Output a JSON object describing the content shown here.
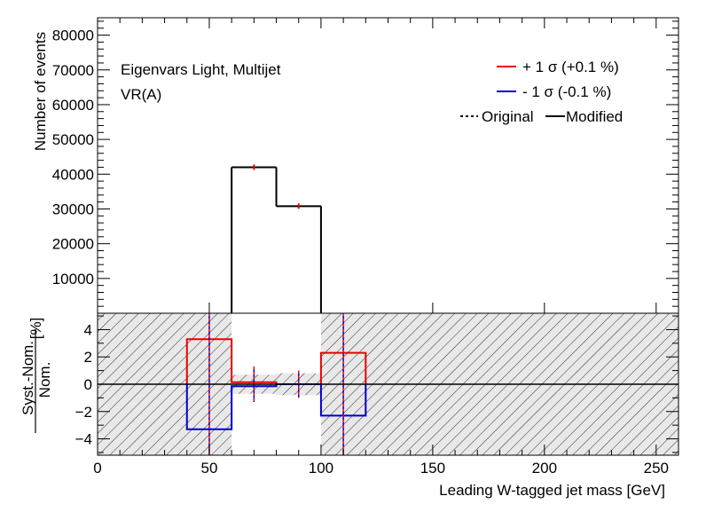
{
  "chart_data": [
    {
      "type": "step",
      "panel": "upper",
      "ylabel": "Number of events",
      "xlim": [
        0,
        260
      ],
      "ylim": [
        0,
        85000
      ],
      "yticks": [
        10000,
        20000,
        30000,
        40000,
        50000,
        60000,
        70000,
        80000
      ],
      "ytick_labels": [
        "10000",
        "20000",
        "30000",
        "40000",
        "50000",
        "60000",
        "70000",
        "80000"
      ],
      "annotations": [
        "Eigenvars Light, Multijet",
        "VR(A)"
      ],
      "legend": {
        "placement": "top-right",
        "entries": [
          {
            "label": "+ 1 σ (+0.1 %)",
            "color": "#ee0000",
            "style": "solid"
          },
          {
            "label": "- 1 σ (-0.1 %)",
            "color": "#0000cc",
            "style": "solid"
          },
          {
            "label": "Original",
            "color": "#000000",
            "style": "dotted"
          },
          {
            "label": "Modified",
            "color": "#000000",
            "style": "solid"
          }
        ]
      },
      "bins": [
        {
          "lo": 60,
          "hi": 80,
          "value": 42000
        },
        {
          "lo": 80,
          "hi": 100,
          "value": 30800
        }
      ]
    },
    {
      "type": "step",
      "panel": "ratio",
      "ylabel_numerator": "Syst.-Nom.",
      "ylabel_denominator": "Nom.",
      "ylabel_unit": "[%]",
      "xlabel": "Leading W-tagged jet mass [GeV]",
      "xlim": [
        0,
        260
      ],
      "ylim": [
        -5.2,
        5.2
      ],
      "xticks": [
        0,
        50,
        100,
        150,
        200,
        250
      ],
      "xtick_labels": [
        "0",
        "50",
        "100",
        "150",
        "200",
        "250"
      ],
      "yticks": [
        -4,
        -2,
        0,
        2,
        4
      ],
      "ytick_labels": [
        "−4",
        "−2",
        "0",
        "2",
        "4"
      ],
      "stat_band": [
        {
          "lo": 0,
          "hi": 40,
          "half_width": 5.2
        },
        {
          "lo": 40,
          "hi": 60,
          "half_width": 5.2
        },
        {
          "lo": 60,
          "hi": 80,
          "half_width": 0.7
        },
        {
          "lo": 80,
          "hi": 100,
          "half_width": 0.8
        },
        {
          "lo": 100,
          "hi": 120,
          "half_width": 5.2
        },
        {
          "lo": 120,
          "hi": 260,
          "half_width": 5.2
        }
      ],
      "stat_band_color": "#e8e8e8",
      "series": [
        {
          "name": "+ 1 σ (+0.1 %)",
          "color": "#ee0000",
          "edges": [
            40,
            60,
            80,
            100,
            120
          ],
          "values": [
            3.3,
            0.15,
            0.0,
            2.3
          ]
        },
        {
          "name": "- 1 σ (-0.1 %)",
          "color": "#0000cc",
          "edges": [
            40,
            60,
            80,
            100,
            120
          ],
          "values": [
            -3.3,
            -0.15,
            0.0,
            -2.3
          ]
        }
      ],
      "original_markers": [
        {
          "x": 50,
          "lo": -5.2,
          "hi": 5.2
        },
        {
          "x": 70,
          "lo": -1.3,
          "hi": 1.3
        },
        {
          "x": 90,
          "lo": -1.0,
          "hi": 1.0
        },
        {
          "x": 110,
          "lo": -5.2,
          "hi": 5.2
        }
      ]
    }
  ]
}
